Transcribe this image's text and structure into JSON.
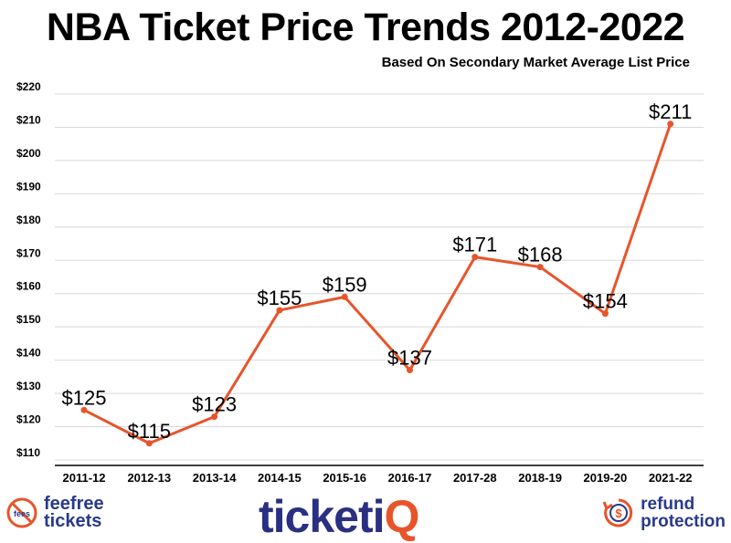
{
  "chart_data": {
    "type": "line",
    "title": "NBA Ticket Price Trends 2012-2022",
    "subtitle": "Based On Secondary Market Average List Price",
    "categories": [
      "2011-12",
      "2012-13",
      "2013-14",
      "2014-15",
      "2015-16",
      "2016-17",
      "2017-28",
      "2018-19",
      "2019-20",
      "2021-22"
    ],
    "values": [
      125,
      115,
      123,
      155,
      159,
      137,
      171,
      168,
      154,
      211
    ],
    "data_labels": [
      "$125",
      "$115",
      "$123",
      "$155",
      "$159",
      "$137",
      "$171",
      "$168",
      "$154",
      "$211"
    ],
    "yticks": [
      110,
      120,
      130,
      140,
      150,
      160,
      170,
      180,
      190,
      200,
      210,
      220
    ],
    "ytick_labels": [
      "$110",
      "$120",
      "$130",
      "$140",
      "$150",
      "$160",
      "$170",
      "$180",
      "$190",
      "$200",
      "$210",
      "$220"
    ],
    "ylim": [
      110,
      220
    ],
    "line_color": "#e8542a",
    "grid": true
  },
  "footer": {
    "feefree": {
      "line1": "feefree",
      "line2": "tickets",
      "badge": "fees"
    },
    "ticketiq": {
      "text": "ticketi",
      "q": "Q"
    },
    "refund": {
      "line1": "refund",
      "line2": "protection",
      "icon": "$"
    },
    "brand_color": "#283a8a",
    "accent_color": "#e8542a"
  }
}
